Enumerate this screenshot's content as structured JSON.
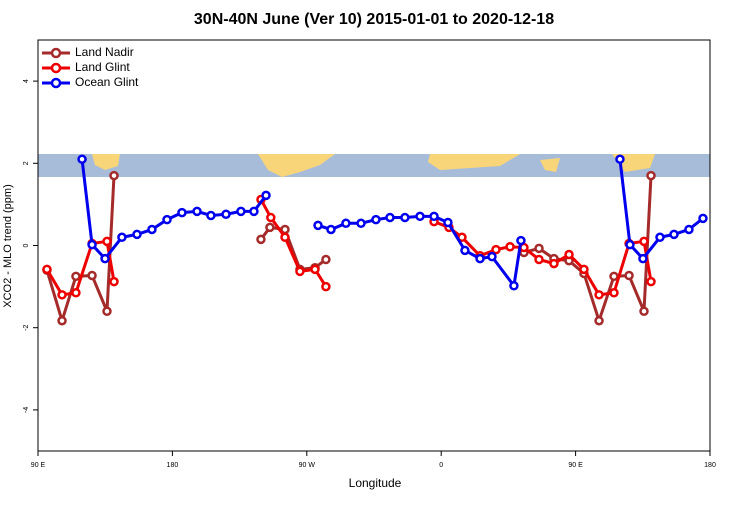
{
  "chart_data": {
    "type": "line",
    "title": "30N-40N June (Ver 10)   2015-01-01 to 2020-12-18",
    "x_label": "Longitude",
    "y_label": "XCO2 - MLO trend (ppm)",
    "xlim": [
      90,
      540
    ],
    "ylim": [
      -5,
      5
    ],
    "xticks": [
      {
        "value": 90,
        "label": "90 E"
      },
      {
        "value": 180,
        "label": "180"
      },
      {
        "value": 270,
        "label": "90 W"
      },
      {
        "value": 360,
        "label": "0"
      },
      {
        "value": 450,
        "label": "90 E"
      },
      {
        "value": 540,
        "label": "180"
      }
    ],
    "yticks": [
      -4,
      -2,
      0,
      2,
      4
    ],
    "grid": false,
    "legend": "top-left",
    "series": [
      {
        "name": "Land Nadir",
        "color": "#a52a2a",
        "x": [
          96.0,
          106.1,
          115.4,
          126.2,
          136.2,
          140.9,
          null,
          239.3,
          245.3,
          255.4,
          265.4,
          275.5,
          282.8,
          null,
          415.4,
          425.5,
          435.5,
          445.6,
          455.6,
          465.7,
          475.7,
          485.8,
          495.8,
          500.5
        ],
        "values": [
          -0.6,
          -1.83,
          -0.75,
          -0.73,
          -1.6,
          1.7,
          null,
          0.15,
          0.44,
          0.39,
          -0.58,
          -0.54,
          -0.34,
          null,
          -0.17,
          -0.07,
          -0.32,
          -0.37,
          -0.68,
          -1.83,
          -0.75,
          -0.73,
          -1.6,
          1.7
        ]
      },
      {
        "name": "Land Glint",
        "color": "#ee0000",
        "x": [
          96.0,
          106.1,
          115.4,
          126.2,
          136.2,
          140.9,
          null,
          239.3,
          245.9,
          255.4,
          265.4,
          275.5,
          282.8,
          null,
          355.2,
          365.2,
          373.9,
          386.0,
          396.7,
          406.1,
          415.4,
          425.5,
          435.5,
          445.6,
          455.6,
          465.7,
          475.7,
          485.8,
          495.8,
          500.5
        ],
        "values": [
          -0.58,
          -1.2,
          -1.15,
          0.05,
          0.1,
          -0.88,
          null,
          1.12,
          0.68,
          0.2,
          -0.63,
          -0.58,
          -1.0,
          null,
          0.58,
          0.44,
          0.2,
          -0.25,
          -0.1,
          -0.03,
          -0.05,
          -0.34,
          -0.44,
          -0.22,
          -0.58,
          -1.2,
          -1.15,
          0.05,
          0.1,
          -0.88
        ]
      },
      {
        "name": "Ocean Glint",
        "color": "#0000ee",
        "x": [
          119.5,
          126.2,
          134.9,
          146.2,
          156.3,
          166.3,
          176.4,
          186.4,
          196.5,
          205.8,
          215.9,
          225.9,
          234.6,
          242.7,
          null,
          277.5,
          286.2,
          296.2,
          306.3,
          316.3,
          325.7,
          335.7,
          345.8,
          355.2,
          364.5,
          375.9,
          386.0,
          394.0,
          408.7,
          413.4,
          null,
          479.7,
          486.4,
          495.1,
          506.5,
          515.9,
          525.9,
          535.3
        ],
        "values": [
          2.1,
          0.02,
          -0.32,
          0.2,
          0.27,
          0.39,
          0.63,
          0.8,
          0.83,
          0.73,
          0.76,
          0.83,
          0.83,
          1.22,
          null,
          0.49,
          0.39,
          0.54,
          0.54,
          0.63,
          0.68,
          0.68,
          0.71,
          0.71,
          0.56,
          -0.12,
          -0.32,
          -0.27,
          -0.98,
          0.12,
          null,
          2.1,
          0.02,
          -0.32,
          0.2,
          0.27,
          0.39,
          0.66
        ]
      }
    ]
  }
}
